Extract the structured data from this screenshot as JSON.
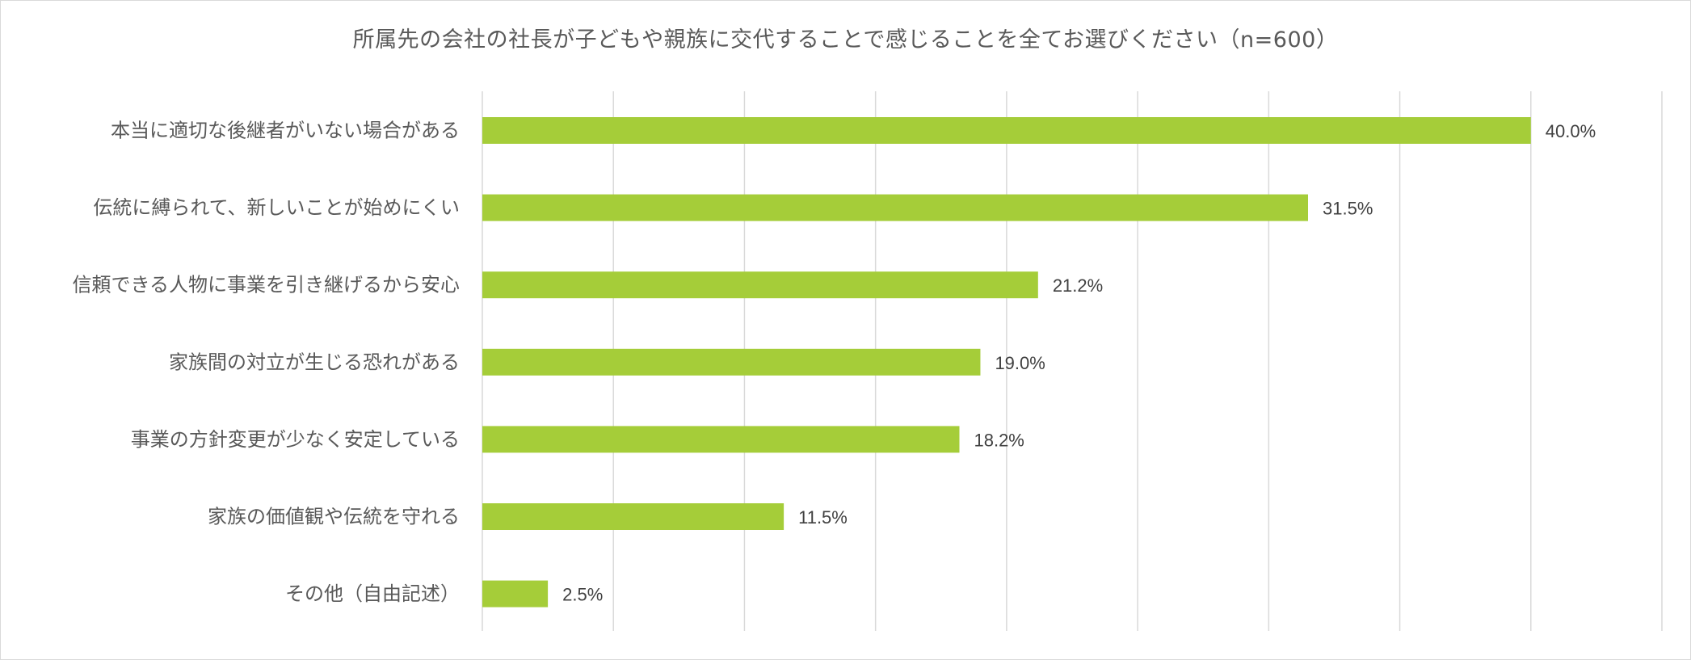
{
  "chart_data": {
    "type": "bar",
    "orientation": "horizontal",
    "title": "所属先の会社の社長が子どもや親族に交代することで感じることを全てお選びください（n=600）",
    "categories": [
      "本当に適切な後継者がいない場合がある",
      "伝統に縛られて、新しいことが始めにくい",
      "信頼できる人物に事業を引き継げるから安心",
      "家族間の対立が生じる恐れがある",
      "事業の方針変更が少なく安定している",
      "家族の価値観や伝統を守れる",
      "その他（自由記述）"
    ],
    "values": [
      40.0,
      31.5,
      21.2,
      19.0,
      18.2,
      11.5,
      2.5
    ],
    "data_labels": [
      "40.0%",
      "31.5%",
      "21.2%",
      "19.0%",
      "18.2%",
      "11.5%",
      "2.5%"
    ],
    "unit": "%",
    "xlim": [
      0,
      45
    ],
    "gridline_step": 5,
    "grid": true,
    "legend": "none",
    "bar_color": "#a5cd39",
    "gridline_color": "#d9d9d9",
    "text_color": "#595959",
    "label_color": "#404040"
  }
}
